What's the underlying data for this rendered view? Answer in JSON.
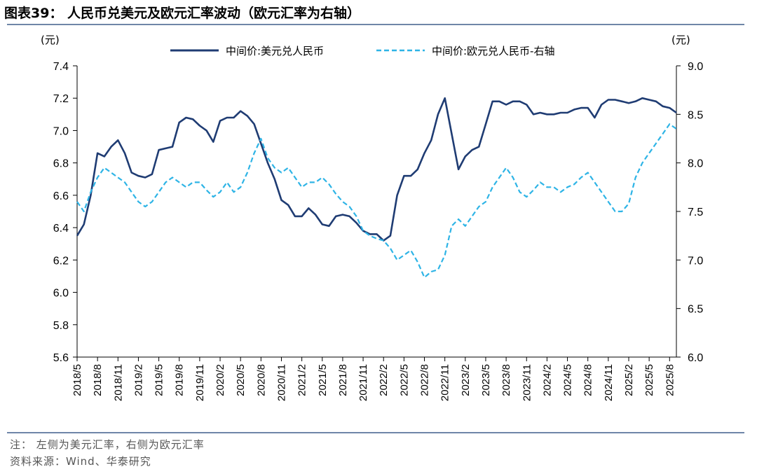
{
  "header": {
    "title": "图表39：  人民币兑美元及欧元汇率波动（欧元汇率为右轴）"
  },
  "footer": {
    "note": "注：  左侧为美元汇率，右侧为欧元汇率",
    "source": "资料来源：Wind、华泰研究"
  },
  "colors": {
    "usd_series": "#1f3c73",
    "eur_series": "#2eb4e6",
    "axis": "#000000",
    "rule": "#6f86a8"
  },
  "chart_data": {
    "type": "line",
    "title": "人民币兑美元及欧元汇率波动（欧元汇率为右轴）",
    "left_axis": {
      "unit_label": "(元)",
      "range": [
        5.6,
        7.4
      ],
      "ticks": [
        "7.4",
        "7.2",
        "7.0",
        "6.8",
        "6.6",
        "6.4",
        "6.2",
        "6.0",
        "5.8",
        "5.6"
      ]
    },
    "right_axis": {
      "unit_label": "(元)",
      "range": [
        6.0,
        9.0
      ],
      "ticks": [
        "9.0",
        "8.5",
        "8.0",
        "7.5",
        "7.0",
        "6.5",
        "6.0"
      ]
    },
    "x_range": [
      "2018/5",
      "2025/9"
    ],
    "x_tick_labels": [
      "2018/5",
      "2018/8",
      "2018/11",
      "2019/2",
      "2019/5",
      "2019/8",
      "2019/11",
      "2020/2",
      "2020/5",
      "2020/8",
      "2020/11",
      "2021/2",
      "2021/5",
      "2021/8",
      "2021/11",
      "2022/2",
      "2022/5",
      "2022/8",
      "2022/11",
      "2023/2",
      "2023/5",
      "2023/8",
      "2023/11",
      "2024/2",
      "2024/5",
      "2024/8",
      "2024/11",
      "2025/2",
      "2025/5",
      "2025/8"
    ],
    "grid": false,
    "legend_position": "top",
    "series": [
      {
        "name": "中间价:美元兑人民币",
        "axis": "left",
        "style": "solid",
        "x": [
          "2018/5",
          "2018/6",
          "2018/7",
          "2018/8",
          "2018/9",
          "2018/10",
          "2018/11",
          "2018/12",
          "2019/1",
          "2019/2",
          "2019/3",
          "2019/4",
          "2019/5",
          "2019/6",
          "2019/7",
          "2019/8",
          "2019/9",
          "2019/10",
          "2019/11",
          "2019/12",
          "2020/1",
          "2020/2",
          "2020/3",
          "2020/4",
          "2020/5",
          "2020/6",
          "2020/7",
          "2020/8",
          "2020/9",
          "2020/10",
          "2020/11",
          "2020/12",
          "2021/1",
          "2021/2",
          "2021/3",
          "2021/4",
          "2021/5",
          "2021/6",
          "2021/7",
          "2021/8",
          "2021/9",
          "2021/10",
          "2021/11",
          "2021/12",
          "2022/1",
          "2022/2",
          "2022/3",
          "2022/4",
          "2022/5",
          "2022/6",
          "2022/7",
          "2022/8",
          "2022/9",
          "2022/10",
          "2022/11",
          "2022/12",
          "2023/1",
          "2023/2",
          "2023/3",
          "2023/4",
          "2023/5",
          "2023/6",
          "2023/7",
          "2023/8",
          "2023/9",
          "2023/10",
          "2023/11",
          "2023/12",
          "2024/1",
          "2024/2",
          "2024/3",
          "2024/4",
          "2024/5",
          "2024/6",
          "2024/7",
          "2024/8",
          "2024/9",
          "2024/10",
          "2024/11",
          "2024/12",
          "2025/1",
          "2025/2",
          "2025/3",
          "2025/4",
          "2025/5",
          "2025/6",
          "2025/7",
          "2025/8",
          "2025/9"
        ],
        "values": [
          6.35,
          6.42,
          6.6,
          6.86,
          6.84,
          6.9,
          6.94,
          6.86,
          6.74,
          6.72,
          6.71,
          6.73,
          6.88,
          6.89,
          6.9,
          7.05,
          7.08,
          7.07,
          7.03,
          7.0,
          6.93,
          7.06,
          7.08,
          7.08,
          7.12,
          7.09,
          7.04,
          6.92,
          6.8,
          6.7,
          6.57,
          6.54,
          6.47,
          6.47,
          6.52,
          6.48,
          6.42,
          6.41,
          6.47,
          6.48,
          6.47,
          6.43,
          6.38,
          6.36,
          6.36,
          6.32,
          6.35,
          6.6,
          6.72,
          6.72,
          6.76,
          6.86,
          6.94,
          7.1,
          7.2,
          6.98,
          6.76,
          6.84,
          6.88,
          6.9,
          7.04,
          7.18,
          7.18,
          7.16,
          7.18,
          7.18,
          7.16,
          7.1,
          7.11,
          7.1,
          7.1,
          7.11,
          7.11,
          7.13,
          7.14,
          7.14,
          7.08,
          7.16,
          7.19,
          7.19,
          7.18,
          7.17,
          7.18,
          7.2,
          7.19,
          7.18,
          7.15,
          7.14,
          7.11
        ]
      },
      {
        "name": "中间价:欧元兑人民币-右轴",
        "axis": "right",
        "style": "dashed",
        "x": [
          "2018/5",
          "2018/6",
          "2018/7",
          "2018/8",
          "2018/9",
          "2018/10",
          "2018/11",
          "2018/12",
          "2019/1",
          "2019/2",
          "2019/3",
          "2019/4",
          "2019/5",
          "2019/6",
          "2019/7",
          "2019/8",
          "2019/9",
          "2019/10",
          "2019/11",
          "2019/12",
          "2020/1",
          "2020/2",
          "2020/3",
          "2020/4",
          "2020/5",
          "2020/6",
          "2020/7",
          "2020/8",
          "2020/9",
          "2020/10",
          "2020/11",
          "2020/12",
          "2021/1",
          "2021/2",
          "2021/3",
          "2021/4",
          "2021/5",
          "2021/6",
          "2021/7",
          "2021/8",
          "2021/9",
          "2021/10",
          "2021/11",
          "2021/12",
          "2022/1",
          "2022/2",
          "2022/3",
          "2022/4",
          "2022/5",
          "2022/6",
          "2022/7",
          "2022/8",
          "2022/9",
          "2022/10",
          "2022/11",
          "2022/12",
          "2023/1",
          "2023/2",
          "2023/3",
          "2023/4",
          "2023/5",
          "2023/6",
          "2023/7",
          "2023/8",
          "2023/9",
          "2023/10",
          "2023/11",
          "2023/12",
          "2024/1",
          "2024/2",
          "2024/3",
          "2024/4",
          "2024/5",
          "2024/6",
          "2024/7",
          "2024/8",
          "2024/9",
          "2024/10",
          "2024/11",
          "2024/12",
          "2025/1",
          "2025/2",
          "2025/3",
          "2025/4",
          "2025/5",
          "2025/6",
          "2025/7",
          "2025/8",
          "2025/9"
        ],
        "values": [
          7.6,
          7.5,
          7.7,
          7.85,
          7.95,
          7.9,
          7.85,
          7.8,
          7.7,
          7.6,
          7.55,
          7.6,
          7.7,
          7.8,
          7.85,
          7.8,
          7.75,
          7.8,
          7.8,
          7.72,
          7.65,
          7.7,
          7.8,
          7.7,
          7.75,
          7.9,
          8.1,
          8.25,
          8.05,
          7.95,
          7.9,
          7.95,
          7.85,
          7.75,
          7.8,
          7.8,
          7.85,
          7.78,
          7.68,
          7.6,
          7.55,
          7.45,
          7.3,
          7.25,
          7.22,
          7.2,
          7.12,
          7.0,
          7.05,
          7.1,
          6.98,
          6.82,
          6.88,
          6.9,
          7.05,
          7.35,
          7.42,
          7.35,
          7.45,
          7.55,
          7.6,
          7.75,
          7.85,
          7.95,
          7.85,
          7.7,
          7.65,
          7.72,
          7.8,
          7.75,
          7.75,
          7.7,
          7.75,
          7.78,
          7.85,
          7.9,
          7.8,
          7.7,
          7.6,
          7.5,
          7.5,
          7.58,
          7.85,
          8.0,
          8.1,
          8.2,
          8.3,
          8.4,
          8.35
        ]
      }
    ]
  }
}
